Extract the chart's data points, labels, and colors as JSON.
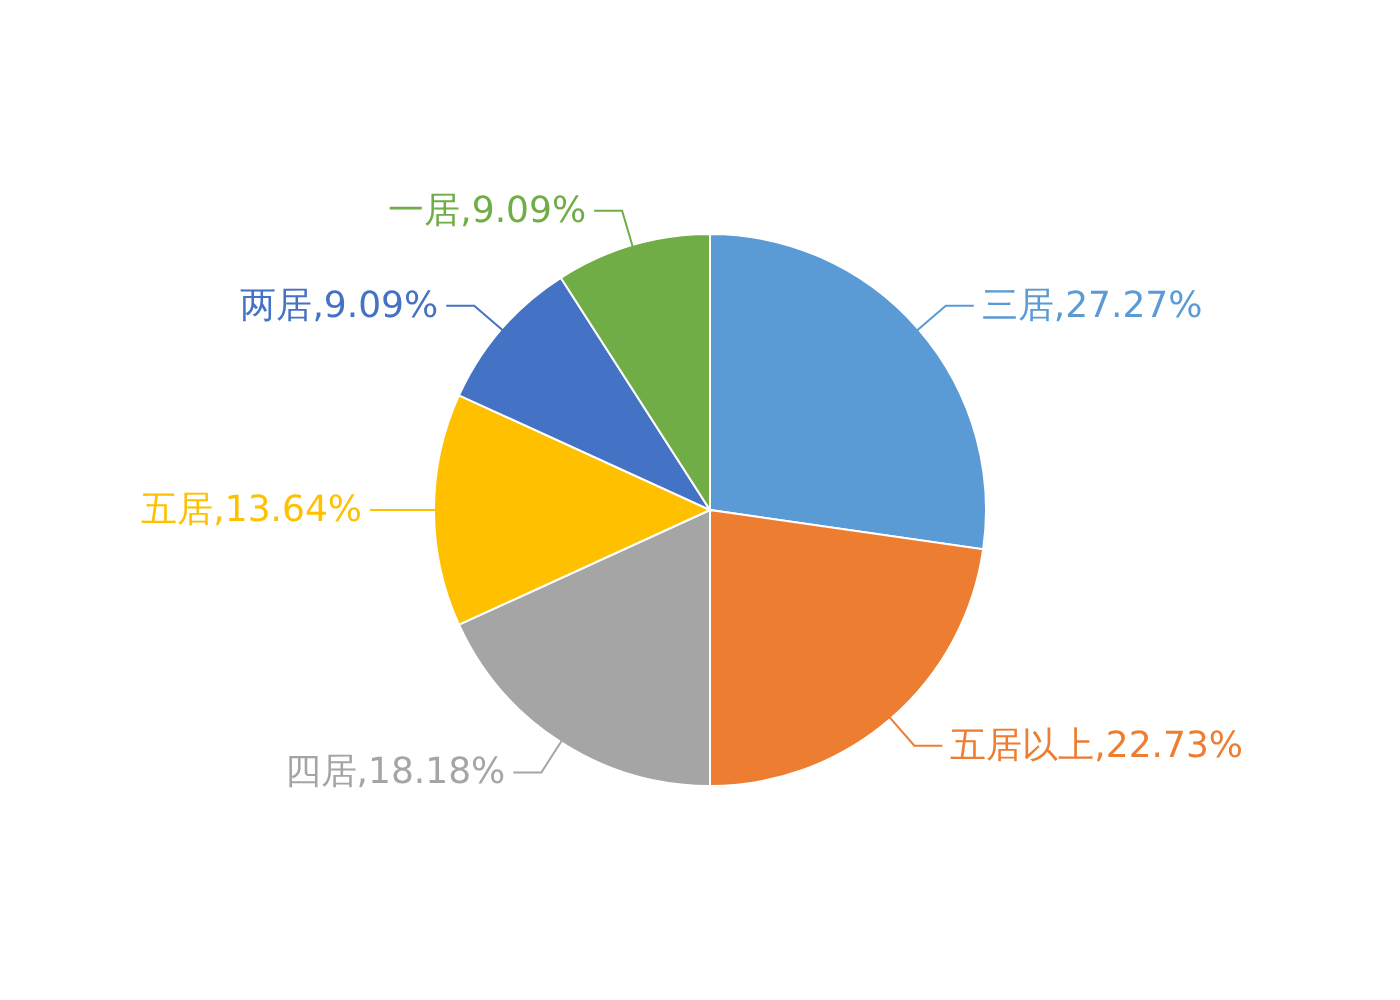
{
  "chart_data": {
    "type": "pie",
    "categories": [
      "三居",
      "五居以上",
      "四居",
      "五居",
      "两居",
      "一居"
    ],
    "values": [
      27.27,
      22.73,
      18.18,
      13.64,
      9.09,
      9.09
    ],
    "colors": [
      "#5b9bd5",
      "#ed7d31",
      "#a5a5a5",
      "#ffc000",
      "#4472c4",
      "#70ad47"
    ],
    "value_labels": [
      "27.27%",
      "22.73%",
      "18.18%",
      "13.64%",
      "9.09%",
      "9.09%"
    ],
    "legend": false
  }
}
